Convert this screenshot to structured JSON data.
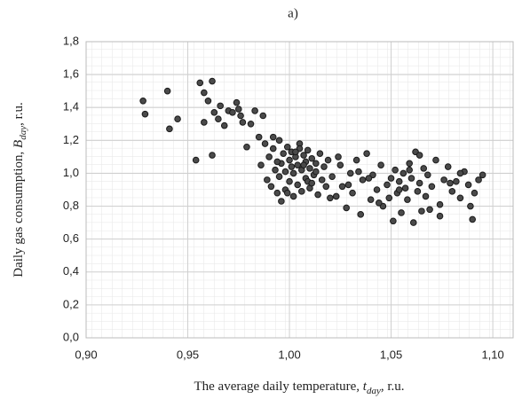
{
  "chart_data": {
    "type": "scatter",
    "title": "a)",
    "x_label": {
      "text": "The average daily temperature,",
      "symbol": "t",
      "subscript": "day",
      "unit": ", r.u."
    },
    "y_label": {
      "text": "Daily gas consumption,",
      "symbol": "B",
      "subscript": "day",
      "unit": ", r.u."
    },
    "xlim": [
      0.9,
      1.11
    ],
    "ylim": [
      0,
      1.8
    ],
    "xticks": [
      {
        "value": 0.9,
        "label": "0,90"
      },
      {
        "value": 0.95,
        "label": "0,95"
      },
      {
        "value": 1.0,
        "label": "1,00"
      },
      {
        "value": 1.05,
        "label": "1,05"
      },
      {
        "value": 1.1,
        "label": "1,10"
      }
    ],
    "yticks": [
      {
        "value": 0,
        "label": "0,0"
      },
      {
        "value": 0.2,
        "label": "0,2"
      },
      {
        "value": 0.4,
        "label": "0,4"
      },
      {
        "value": 0.6,
        "label": "0,6"
      },
      {
        "value": 0.8,
        "label": "0,8"
      },
      {
        "value": 1.0,
        "label": "1,0"
      },
      {
        "value": 1.2,
        "label": "1,2"
      },
      {
        "value": 1.4,
        "label": "1,4"
      },
      {
        "value": 1.6,
        "label": "1,6"
      },
      {
        "value": 1.8,
        "label": "1,8"
      }
    ],
    "grid": true,
    "color": "#4a4a4a",
    "x": [
      0.928,
      0.929,
      0.94,
      0.941,
      0.945,
      0.954,
      0.956,
      0.958,
      0.958,
      0.96,
      0.962,
      0.963,
      0.962,
      0.965,
      0.966,
      0.968,
      0.97,
      0.972,
      0.974,
      0.975,
      0.976,
      0.977,
      0.979,
      0.981,
      0.983,
      0.985,
      0.986,
      0.987,
      0.988,
      0.989,
      0.99,
      0.991,
      0.992,
      0.993,
      0.994,
      0.995,
      0.995,
      0.996,
      0.997,
      0.998,
      0.998,
      0.999,
      1.0,
      1.0,
      1.001,
      1.002,
      1.002,
      1.003,
      1.004,
      1.004,
      1.005,
      1.006,
      1.006,
      1.007,
      1.008,
      1.008,
      1.009,
      1.01,
      1.01,
      1.011,
      1.012,
      1.013,
      1.014,
      1.015,
      1.016,
      1.017,
      1.018,
      1.019,
      1.02,
      0.992,
      0.996,
      1.001,
      1.005,
      1.009,
      1.013,
      0.994,
      0.999,
      1.003,
      1.007,
      1.011,
      1.021,
      1.023,
      1.025,
      1.026,
      1.028,
      1.03,
      1.031,
      1.033,
      1.035,
      1.036,
      1.038,
      1.04,
      1.041,
      1.043,
      1.045,
      1.046,
      1.048,
      1.05,
      1.051,
      1.052,
      1.053,
      1.054,
      1.055,
      1.056,
      1.057,
      1.058,
      1.059,
      1.06,
      1.061,
      1.062,
      1.063,
      1.064,
      1.065,
      1.066,
      1.067,
      1.068,
      1.07,
      1.072,
      1.074,
      1.076,
      1.078,
      1.08,
      1.082,
      1.084,
      1.086,
      1.088,
      1.09,
      1.091,
      1.093,
      1.095,
      1.024,
      1.034,
      1.044,
      1.054,
      1.064,
      1.074,
      1.084,
      1.029,
      1.039,
      1.049,
      1.059,
      1.069,
      1.079,
      1.089
    ],
    "values": [
      1.44,
      1.36,
      1.5,
      1.27,
      1.33,
      1.08,
      1.55,
      1.49,
      1.31,
      1.44,
      1.56,
      1.37,
      1.11,
      1.33,
      1.41,
      1.29,
      1.38,
      1.37,
      1.43,
      1.39,
      1.35,
      1.31,
      1.16,
      1.3,
      1.38,
      1.22,
      1.05,
      1.35,
      1.18,
      0.96,
      1.1,
      0.92,
      1.15,
      1.02,
      0.88,
      1.2,
      0.98,
      1.06,
      1.12,
      0.9,
      1.01,
      1.16,
      1.08,
      0.95,
      1.13,
      1.0,
      0.86,
      1.1,
      1.05,
      0.93,
      1.18,
      1.02,
      0.89,
      1.11,
      1.07,
      0.97,
      1.14,
      1.03,
      0.91,
      1.09,
      0.99,
      1.06,
      0.87,
      1.12,
      0.96,
      1.04,
      0.92,
      1.08,
      0.85,
      1.22,
      0.83,
      1.04,
      1.15,
      0.95,
      1.01,
      1.07,
      0.88,
      1.13,
      1.05,
      0.94,
      0.98,
      0.86,
      1.05,
      0.92,
      0.79,
      1.0,
      0.88,
      1.08,
      0.75,
      0.96,
      1.12,
      0.84,
      0.99,
      0.9,
      1.05,
      0.8,
      0.93,
      0.97,
      0.71,
      1.02,
      0.88,
      0.95,
      0.76,
      1.0,
      0.91,
      0.84,
      1.06,
      0.97,
      0.7,
      1.13,
      0.89,
      0.94,
      0.77,
      1.03,
      0.86,
      0.99,
      0.92,
      1.08,
      0.81,
      0.96,
      1.04,
      0.89,
      0.95,
      0.85,
      1.01,
      0.93,
      0.72,
      0.88,
      0.96,
      0.99,
      1.1,
      1.01,
      0.82,
      0.9,
      1.11,
      0.74,
      1.0,
      0.93,
      0.97,
      0.85,
      1.02,
      0.78,
      0.94,
      0.8
    ]
  }
}
